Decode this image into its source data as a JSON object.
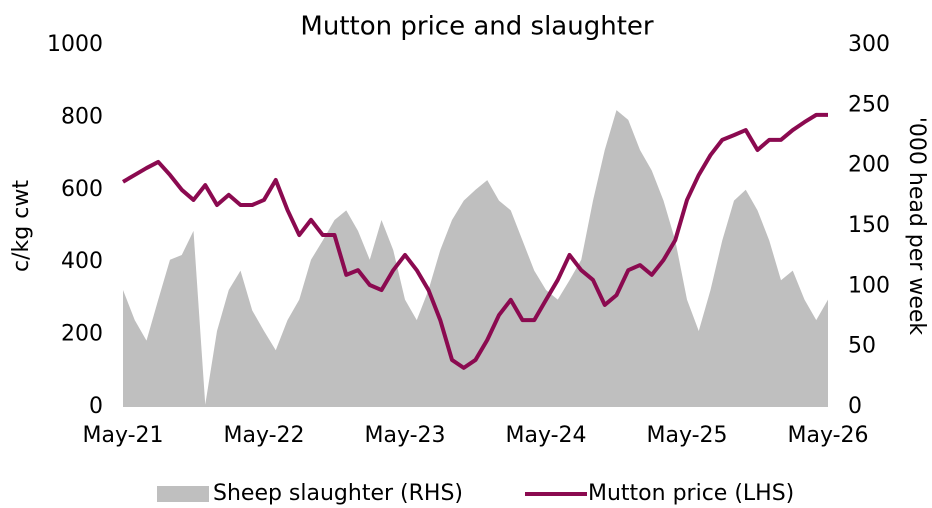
{
  "chart_data": {
    "type": "line",
    "title": "Mutton price and slaughter",
    "ylabel": "c/kg cwt",
    "y2label": "'000 head per week",
    "x": [
      "May-21",
      "Jun-21",
      "Jul-21",
      "Aug-21",
      "Sep-21",
      "Oct-21",
      "Nov-21",
      "Dec-21",
      "Jan-22",
      "Feb-22",
      "Mar-22",
      "Apr-22",
      "May-22",
      "Jun-22",
      "Jul-22",
      "Aug-22",
      "Sep-22",
      "Oct-22",
      "Nov-22",
      "Dec-22",
      "Jan-23",
      "Feb-23",
      "Mar-23",
      "Apr-23",
      "May-23",
      "Jun-23",
      "Jul-23",
      "Aug-23",
      "Sep-23",
      "Oct-23",
      "Nov-23",
      "Dec-23",
      "Jan-24",
      "Feb-24",
      "Mar-24",
      "Apr-24",
      "May-24",
      "Jun-24",
      "Jul-24",
      "Aug-24",
      "Sep-24",
      "Oct-24",
      "Nov-24",
      "Dec-24",
      "Jan-25",
      "Feb-25",
      "Mar-25",
      "Apr-25",
      "May-25",
      "Jun-25",
      "Jul-25",
      "Aug-25",
      "Sep-25",
      "Oct-25",
      "Nov-25",
      "Dec-25",
      "Jan-26",
      "Feb-26",
      "Mar-26",
      "Apr-26",
      "May-26"
    ],
    "xticks": [
      "May-21",
      "May-22",
      "May-23",
      "May-24",
      "May-25",
      "May-26"
    ],
    "ylim": [
      0,
      1000
    ],
    "yticks": [
      0,
      200,
      400,
      600,
      800,
      1000
    ],
    "y2lim": [
      0,
      300
    ],
    "y2ticks": [
      0,
      50,
      100,
      150,
      200,
      250,
      300
    ],
    "series": [
      {
        "name": "Sheep slaughter (RHS)",
        "color": "#bfbfbf",
        "axis": "y2",
        "style": "area",
        "values": [
          97,
          72,
          55,
          89,
          122,
          126,
          146,
          2,
          63,
          97,
          113,
          80,
          63,
          47,
          72,
          89,
          122,
          138,
          155,
          163,
          146,
          122,
          155,
          130,
          89,
          72,
          97,
          130,
          155,
          171,
          180,
          188,
          171,
          163,
          138,
          113,
          97,
          89,
          105,
          122,
          171,
          213,
          246,
          238,
          213,
          196,
          171,
          138,
          89,
          63,
          97,
          138,
          171,
          180,
          163,
          138,
          105,
          113,
          89,
          72,
          89
        ]
      },
      {
        "name": "Mutton price (LHS)",
        "color": "#8b0a50",
        "axis": "y",
        "style": "line",
        "values": [
          622,
          641,
          660,
          677,
          641,
          600,
          572,
          613,
          558,
          586,
          558,
          558,
          572,
          627,
          544,
          475,
          517,
          475,
          475,
          365,
          378,
          337,
          323,
          378,
          420,
          378,
          323,
          240,
          130,
          108,
          130,
          185,
          254,
          296,
          240,
          240,
          296,
          351,
          420,
          378,
          351,
          282,
          309,
          378,
          392,
          365,
          406,
          461,
          572,
          641,
          696,
          738,
          751,
          765,
          710,
          738,
          738,
          765,
          787,
          807,
          807
        ]
      }
    ]
  }
}
